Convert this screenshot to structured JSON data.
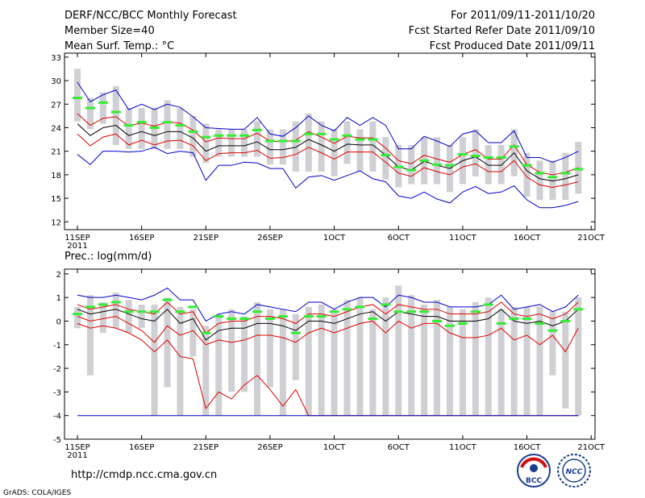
{
  "header": {
    "title": "DERF/NCC/BCC Monthly Forecast",
    "member_size": "Member Size=40",
    "variable_top": "Mean Surf. Temp.: °C",
    "period": "For 2011/09/11-2011/10/20",
    "started": "Fcst Started Refer Date 2011/09/10",
    "produced": "Fcst Produced Date 2011/09/11"
  },
  "footer": {
    "url": "http://cmdp.ncc.cma.gov.cn",
    "credit": "GrADS: COLA/IGES",
    "logo_bcc": "BCC",
    "logo_ncc": "NCC"
  },
  "colors": {
    "box": "#d0d0d4",
    "hindcast": "#33ee33",
    "mean": "#000000",
    "inner": "#dd0000",
    "outer": "#0000cc"
  },
  "chart_data": [
    {
      "type": "line",
      "title": "Mean Surf. Temp.: °C",
      "xlabel": "",
      "ylabel": "°C",
      "ylim": [
        11,
        33.5
      ],
      "yticks": [
        12,
        15,
        18,
        21,
        24,
        27,
        30,
        33
      ],
      "xticks": [
        {
          "day": 0,
          "label": "11SEP",
          "sub": "2011"
        },
        {
          "day": 5,
          "label": "16SEP"
        },
        {
          "day": 10,
          "label": "21SEP"
        },
        {
          "day": 15,
          "label": "26SEP"
        },
        {
          "day": 20,
          "label": "1OCT"
        },
        {
          "day": 25,
          "label": "6OCT"
        },
        {
          "day": 30,
          "label": "11OCT"
        },
        {
          "day": 35,
          "label": "16OCT"
        },
        {
          "day": 40,
          "label": "21OCT"
        }
      ],
      "series": [
        {
          "name": "mean",
          "values": [
            24.5,
            23,
            24,
            24.3,
            23,
            23.5,
            23,
            23.5,
            23.5,
            22.7,
            21,
            21.7,
            21.7,
            21.7,
            22.2,
            21.2,
            21.2,
            21.5,
            22.5,
            21.8,
            21,
            21.9,
            21.8,
            21.8,
            20.5,
            19,
            18.6,
            19.7,
            19.2,
            18.8,
            19.8,
            20.3,
            19.2,
            19.2,
            20.8,
            18.5,
            17.5,
            17.2,
            17.5,
            18
          ]
        },
        {
          "name": "inner_upper",
          "values": [
            25.8,
            24.3,
            25.2,
            25.4,
            24.2,
            24.6,
            24.2,
            24.7,
            24.6,
            23.7,
            22.2,
            22.7,
            22.6,
            22.6,
            23.3,
            22.3,
            22.2,
            22.4,
            23.5,
            22.8,
            22,
            22.9,
            22.7,
            22.7,
            21.4,
            19.8,
            19.4,
            20.5,
            20,
            19.6,
            20.6,
            21.2,
            20,
            20,
            21.8,
            19.3,
            18.3,
            18,
            18.3,
            18.9
          ]
        },
        {
          "name": "inner_lower",
          "values": [
            23.2,
            21.7,
            22.8,
            23.2,
            21.8,
            22.4,
            21.8,
            22.3,
            22.4,
            21.7,
            19.8,
            20.7,
            20.8,
            20.8,
            21.1,
            20.1,
            20.2,
            20.6,
            21.5,
            20.8,
            20,
            20.9,
            20.9,
            20.9,
            19.6,
            18.2,
            17.8,
            18.9,
            18.4,
            18,
            19,
            19.4,
            18.4,
            18.4,
            19.8,
            17.7,
            16.7,
            16.4,
            16.7,
            17.1
          ]
        },
        {
          "name": "outer_upper",
          "values": [
            29.8,
            27.3,
            28.2,
            28.8,
            26.3,
            27,
            26.3,
            27,
            26.6,
            25.4,
            24,
            23.9,
            23.8,
            23.8,
            25.3,
            23.2,
            22.9,
            24,
            25.5,
            24.3,
            23.6,
            25.3,
            24.3,
            25.3,
            24.3,
            21.3,
            21.3,
            22.9,
            22.3,
            21.6,
            23.2,
            23.6,
            22.1,
            22.1,
            23.6,
            20.2,
            20.2,
            19.6,
            20.2,
            21
          ]
        },
        {
          "name": "outer_lower",
          "values": [
            20.6,
            19.3,
            21,
            21,
            20.9,
            21,
            21.5,
            20.7,
            21,
            20.8,
            17.3,
            19.2,
            19.2,
            19.6,
            19.5,
            18.8,
            18.8,
            16.3,
            17.7,
            17.9,
            17.3,
            17.9,
            18.5,
            17.5,
            17.1,
            15.3,
            15,
            15.8,
            14.9,
            14.4,
            15.8,
            16.5,
            15.6,
            15.8,
            16.6,
            14.8,
            13.8,
            13.8,
            14.1,
            14.6
          ]
        },
        {
          "name": "hindcast",
          "values": [
            27.8,
            26.5,
            27.2,
            26,
            24.3,
            24.7,
            24,
            24.7,
            24.3,
            23.5,
            22.8,
            23,
            23,
            23,
            23.7,
            22.3,
            22.3,
            22.3,
            23.2,
            23.2,
            22.5,
            23,
            22.5,
            22.5,
            20.5,
            19,
            18.6,
            19.8,
            19.3,
            19.2,
            20.6,
            20.4,
            20.2,
            20.2,
            21.6,
            19.2,
            18.2,
            17.7,
            18.2,
            18.7
          ]
        }
      ],
      "boxes": {
        "low": [
          24.8,
          23.8,
          24.5,
          21.8,
          21.3,
          21.3,
          21.3,
          21.3,
          21.3,
          20.3,
          19.5,
          20.3,
          20.3,
          20.3,
          20.3,
          19.3,
          19.3,
          18.4,
          18.4,
          18.4,
          17.8,
          19.4,
          18.4,
          18.4,
          17.4,
          16.4,
          16.8,
          16.8,
          16.8,
          15.8,
          16.8,
          17.8,
          16.8,
          16.8,
          17.8,
          15.2,
          14.8,
          14.8,
          14.8,
          15.6
        ],
        "high": [
          31.5,
          27.8,
          28.5,
          29.3,
          26.5,
          26.5,
          26.5,
          27.5,
          26.5,
          25.5,
          24.5,
          23.8,
          23.8,
          23.8,
          24.8,
          23.8,
          23.8,
          24.8,
          25.8,
          24.8,
          23.8,
          24.8,
          23.8,
          24.8,
          22.8,
          21.8,
          21.8,
          22.8,
          22.8,
          21.8,
          22.8,
          23.8,
          21.8,
          21.8,
          23.8,
          20.8,
          19.8,
          19.8,
          20.8,
          22.2
        ]
      }
    },
    {
      "type": "line",
      "title": "Prec.: log(mm/d)",
      "xlabel": "",
      "ylabel": "log(mm/d)",
      "ylim": [
        -5,
        2.2
      ],
      "yticks": [
        -5,
        -4,
        -3,
        -2,
        -1,
        0,
        1,
        2
      ],
      "xticks": [
        {
          "day": 0,
          "label": "11SEP",
          "sub": "2011"
        },
        {
          "day": 5,
          "label": "16SEP"
        },
        {
          "day": 10,
          "label": "21SEP"
        },
        {
          "day": 15,
          "label": "26SEP"
        },
        {
          "day": 20,
          "label": "1OCT"
        },
        {
          "day": 25,
          "label": "6OCT"
        },
        {
          "day": 30,
          "label": "11OCT"
        },
        {
          "day": 35,
          "label": "16OCT"
        },
        {
          "day": 40,
          "label": "21OCT"
        }
      ],
      "series": [
        {
          "name": "mean",
          "values": [
            0.5,
            0.3,
            0.4,
            0.5,
            0.3,
            0.1,
            0,
            0.5,
            -0.1,
            0.1,
            -0.8,
            -0.4,
            -0.3,
            -0.3,
            -0.1,
            -0.1,
            -0.2,
            -0.4,
            0,
            0,
            -0.1,
            0.1,
            0.3,
            0.4,
            0,
            0.4,
            0.3,
            0.2,
            0.2,
            0,
            0,
            0,
            0.1,
            0.5,
            0,
            -0.1,
            0,
            -0.2,
            0,
            0.5
          ]
        },
        {
          "name": "inner_upper",
          "values": [
            0.7,
            0.5,
            0.6,
            0.7,
            0.5,
            0.4,
            0.3,
            0.8,
            0.3,
            0.4,
            -0.5,
            -0.1,
            0,
            0,
            0.2,
            0.2,
            0.1,
            -0.1,
            0.3,
            0.3,
            0.2,
            0.4,
            0.6,
            0.7,
            0.3,
            0.7,
            0.6,
            0.5,
            0.5,
            0.3,
            0.3,
            0.3,
            0.4,
            0.8,
            0.3,
            0.2,
            0.3,
            0.1,
            0.3,
            0.8
          ]
        },
        {
          "name": "inner_lower",
          "values": [
            0.2,
            0,
            0.1,
            0.2,
            -0.1,
            -0.4,
            -0.9,
            -0.2,
            -0.6,
            -0.4,
            -1,
            -0.8,
            -0.9,
            -0.8,
            -0.6,
            -0.6,
            -0.7,
            -0.9,
            -0.5,
            -0.3,
            -0.5,
            -0.3,
            -0.1,
            0,
            -0.5,
            0,
            -0.3,
            -0.1,
            -0.1,
            -0.5,
            -0.7,
            -0.7,
            -0.6,
            -0.3,
            -0.8,
            -0.6,
            -1,
            -0.6,
            -1.3,
            -0.3
          ]
        },
        {
          "name": "outer_upper",
          "values": [
            1.1,
            1,
            1,
            1.1,
            1,
            0.9,
            1.1,
            1.4,
            0.9,
            0.9,
            0,
            0.3,
            0.4,
            0.3,
            0.7,
            0.6,
            0.5,
            0.4,
            0.8,
            0.8,
            0.5,
            0.8,
            1,
            1,
            0.6,
            1.1,
            1,
            0.8,
            0.8,
            0.6,
            0.6,
            0.6,
            0.7,
            1.1,
            0.5,
            0.6,
            0.7,
            0.4,
            0.6,
            1.1
          ]
        },
        {
          "name": "outer_lower",
          "values": [
            -0.1,
            -0.3,
            -0.2,
            -0.3,
            -0.5,
            -0.8,
            -1.3,
            -0.8,
            -1.5,
            -1.6,
            -3.7,
            -3,
            -3.3,
            -2.7,
            -2.3,
            -2.9,
            -3.6,
            -2.9,
            -4,
            -4,
            -4,
            -4,
            -4,
            -4,
            -4,
            -4,
            -4,
            -4,
            -4,
            -4,
            -4,
            -4,
            -4,
            -4,
            -4,
            -4,
            -4,
            -4,
            -4,
            -4
          ]
        },
        {
          "name": "hindcast",
          "values": [
            0.3,
            0.6,
            0.7,
            0.8,
            0.4,
            0.4,
            0.4,
            0.9,
            0.4,
            0.6,
            -0.5,
            0.2,
            0.1,
            0.1,
            0.4,
            0.1,
            0.2,
            -0.5,
            0.2,
            0.2,
            0.4,
            0.5,
            0.6,
            0.1,
            0.7,
            0.4,
            0.4,
            0.4,
            0,
            -0.2,
            -0.1,
            0.4,
            0.7,
            -0.1,
            0.1,
            0.1,
            -0.1,
            -0.4,
            0,
            0.5
          ]
        }
      ],
      "boxes": {
        "low": [
          -0.3,
          -2.3,
          -0.5,
          -0.3,
          -0.5,
          -0.3,
          -4,
          -2.8,
          -4,
          -1.5,
          -4,
          -4,
          -3,
          -3,
          -4,
          -2.8,
          -4,
          -2.5,
          -4,
          -4,
          -4,
          -4,
          -4,
          -4,
          -4,
          -4,
          -4,
          -4,
          -4,
          -4,
          -4,
          -4,
          -4,
          -4,
          -4,
          -4,
          -4,
          -2.3,
          -3.7,
          -4
        ],
        "high": [
          0.6,
          1.1,
          0.8,
          1.2,
          0.9,
          0.7,
          0.7,
          1,
          0.6,
          0.5,
          -0.2,
          0.3,
          0.5,
          0.2,
          0.8,
          0.5,
          0.5,
          0.3,
          0.6,
          0.7,
          0.5,
          0.9,
          1,
          0.5,
          1,
          1.5,
          1.1,
          0.7,
          0.9,
          0.6,
          0.5,
          0.8,
          1,
          0.5,
          0.6,
          0.6,
          0.6,
          0.4,
          0.4,
          1
        ]
      }
    }
  ]
}
